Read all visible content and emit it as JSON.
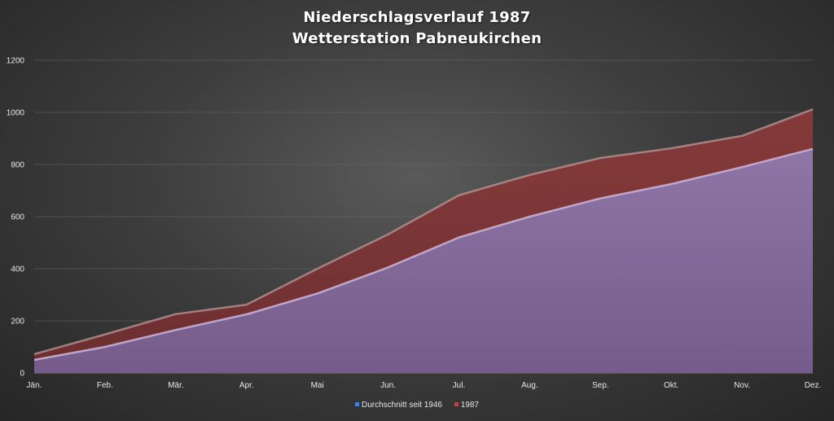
{
  "chart_data": {
    "type": "area",
    "title": "Niederschlagsverlauf 1987",
    "subtitle": "Wetterstation Pabneukirchen",
    "categories": [
      "Jän.",
      "Feb.",
      "Mär.",
      "Apr.",
      "Mai",
      "Jun.",
      "Jul.",
      "Aug.",
      "Sep.",
      "Okt.",
      "Nov.",
      "Dez."
    ],
    "series": [
      {
        "name": "Durchschnitt seit 1946",
        "values": [
          50,
          100,
          165,
          225,
          305,
          405,
          520,
          600,
          670,
          725,
          790,
          860
        ],
        "color": "#8670a0"
      },
      {
        "name": "1987",
        "values": [
          72,
          148,
          226,
          262,
          400,
          532,
          682,
          760,
          825,
          862,
          910,
          1012
        ],
        "color": "#7a3232"
      }
    ],
    "ylim": [
      0,
      1200
    ],
    "yticks": [
      0,
      200,
      400,
      600,
      800,
      1000,
      1200
    ],
    "grid": true,
    "legend_position": "bottom"
  }
}
